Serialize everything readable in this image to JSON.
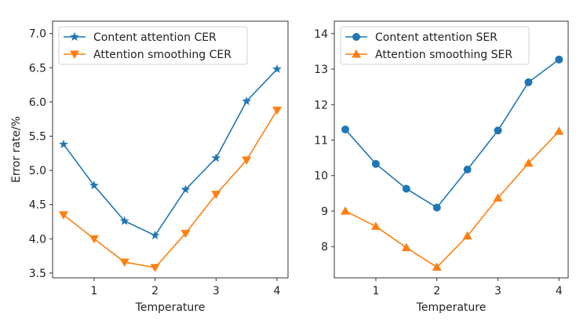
{
  "chart_data": [
    {
      "type": "line",
      "title": "",
      "xlabel": "Temperature",
      "ylabel": "Error rate/%",
      "xlim": [
        0.32,
        4.18
      ],
      "ylim": [
        3.43,
        7.18
      ],
      "xticks": [
        1,
        2,
        3,
        4
      ],
      "xtick_labels": [
        "1",
        "2",
        "3",
        "4"
      ],
      "yticks": [
        3.5,
        4.0,
        4.5,
        5.0,
        5.5,
        6.0,
        6.5,
        7.0
      ],
      "ytick_labels": [
        "3.5",
        "4.0",
        "4.5",
        "5.0",
        "5.5",
        "6.0",
        "6.5",
        "7.0"
      ],
      "grid": false,
      "legend_position": "top-left",
      "x": [
        0.5,
        1,
        1.5,
        2,
        2.5,
        3,
        3.5,
        4
      ],
      "series": [
        {
          "name": "Content attention CER",
          "color": "#1f77b4",
          "marker": "star",
          "values": [
            5.38,
            4.78,
            4.26,
            4.05,
            4.72,
            5.18,
            6.01,
            6.48
          ]
        },
        {
          "name": "Attention smoothing CER",
          "color": "#ff7f0e",
          "marker": "triangle-down",
          "values": [
            4.35,
            4.0,
            3.66,
            3.58,
            4.08,
            4.65,
            5.15,
            5.88
          ]
        }
      ]
    },
    {
      "type": "line",
      "title": "",
      "xlabel": "Temperature",
      "ylabel": "",
      "xlim": [
        0.32,
        4.15
      ],
      "ylim": [
        7.12,
        14.35
      ],
      "xticks": [
        1,
        2,
        3,
        4
      ],
      "xtick_labels": [
        "1",
        "2",
        "3",
        "4"
      ],
      "yticks": [
        8,
        9,
        10,
        11,
        12,
        13,
        14
      ],
      "ytick_labels": [
        "8",
        "9",
        "10",
        "11",
        "12",
        "13",
        "14"
      ],
      "grid": false,
      "legend_position": "top-left",
      "x": [
        0.5,
        1,
        1.5,
        2,
        2.5,
        3,
        3.5,
        4
      ],
      "series": [
        {
          "name": "Content attention SER",
          "color": "#1f77b4",
          "marker": "circle",
          "values": [
            11.3,
            10.33,
            9.63,
            9.1,
            10.17,
            11.27,
            12.63,
            13.27
          ]
        },
        {
          "name": "Attention smoothing SER",
          "color": "#ff7f0e",
          "marker": "triangle-up",
          "values": [
            9.0,
            8.57,
            7.97,
            7.42,
            8.3,
            9.37,
            10.35,
            11.25
          ]
        }
      ]
    }
  ]
}
